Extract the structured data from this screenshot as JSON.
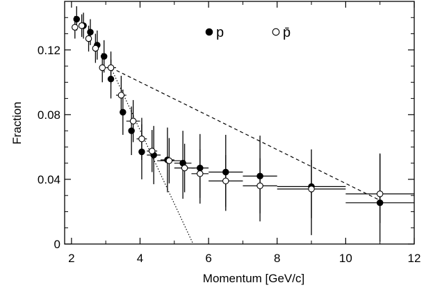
{
  "chart_data": {
    "type": "scatter",
    "xlabel": "Momentum [GeV/c]",
    "ylabel": "Fraction",
    "xlim": [
      1.8,
      12
    ],
    "ylim": [
      0,
      0.15
    ],
    "xticks": [
      "2",
      "4",
      "6",
      "8",
      "10",
      "12"
    ],
    "yticks": [
      "0",
      "0.04",
      "0.08",
      "0.12"
    ],
    "legend": {
      "placement": "top-center",
      "entries": [
        "p",
        "p̄"
      ]
    },
    "series": [
      {
        "name": "p",
        "marker": "filled-circle",
        "points": [
          {
            "x": 2.15,
            "y": 0.139,
            "xerr": 0.0,
            "yerr_lo": 0.007,
            "yerr_hi": 0.008
          },
          {
            "x": 2.35,
            "y": 0.135,
            "xerr": 0.0,
            "yerr_lo": 0.008,
            "yerr_hi": 0.008
          },
          {
            "x": 2.55,
            "y": 0.131,
            "xerr": 0.0,
            "yerr_lo": 0.008,
            "yerr_hi": 0.008
          },
          {
            "x": 2.75,
            "y": 0.123,
            "xerr": 0.0,
            "yerr_lo": 0.009,
            "yerr_hi": 0.009
          },
          {
            "x": 2.95,
            "y": 0.116,
            "xerr": 0.0,
            "yerr_lo": 0.01,
            "yerr_hi": 0.01
          },
          {
            "x": 3.15,
            "y": 0.102,
            "xerr": 0.0,
            "yerr_lo": 0.012,
            "yerr_hi": 0.012
          },
          {
            "x": 3.5,
            "y": 0.0815,
            "xerr": 0.0,
            "yerr_lo": 0.014,
            "yerr_hi": 0.014
          },
          {
            "x": 3.75,
            "y": 0.07,
            "xerr": 0.0,
            "yerr_lo": 0.015,
            "yerr_hi": 0.015
          },
          {
            "x": 4.05,
            "y": 0.057,
            "xerr": 0.0,
            "yerr_lo": 0.017,
            "yerr_hi": 0.017
          },
          {
            "x": 4.4,
            "y": 0.055,
            "xerr": 0.2,
            "yerr_lo": 0.018,
            "yerr_hi": 0.018
          },
          {
            "x": 4.8,
            "y": 0.052,
            "xerr": 0.2,
            "yerr_lo": 0.02,
            "yerr_hi": 0.02
          },
          {
            "x": 5.25,
            "y": 0.05,
            "xerr": 0.25,
            "yerr_lo": 0.022,
            "yerr_hi": 0.02
          },
          {
            "x": 5.75,
            "y": 0.047,
            "xerr": 0.25,
            "yerr_lo": 0.022,
            "yerr_hi": 0.021
          },
          {
            "x": 6.5,
            "y": 0.0445,
            "xerr": 0.5,
            "yerr_lo": 0.024,
            "yerr_hi": 0.023
          },
          {
            "x": 7.5,
            "y": 0.042,
            "xerr": 0.5,
            "yerr_lo": 0.028,
            "yerr_hi": 0.025
          },
          {
            "x": 9.0,
            "y": 0.0355,
            "xerr": 1.0,
            "yerr_lo": 0.03,
            "yerr_hi": 0.023
          },
          {
            "x": 11.0,
            "y": 0.0255,
            "xerr": 1.0,
            "yerr_lo": 0.024,
            "yerr_hi": 0.03
          }
        ]
      },
      {
        "name": "p̄",
        "marker": "open-circle",
        "points": [
          {
            "x": 2.1,
            "y": 0.134,
            "xerr": 0.0,
            "yerr_lo": 0.007,
            "yerr_hi": 0.007
          },
          {
            "x": 2.3,
            "y": 0.135,
            "xerr": 0.0,
            "yerr_lo": 0.007,
            "yerr_hi": 0.007
          },
          {
            "x": 2.5,
            "y": 0.127,
            "xerr": 0.0,
            "yerr_lo": 0.008,
            "yerr_hi": 0.008
          },
          {
            "x": 2.7,
            "y": 0.121,
            "xerr": 0.0,
            "yerr_lo": 0.009,
            "yerr_hi": 0.009
          },
          {
            "x": 2.9,
            "y": 0.109,
            "xerr": 0.0,
            "yerr_lo": 0.009,
            "yerr_hi": 0.009
          },
          {
            "x": 3.15,
            "y": 0.109,
            "xerr": 0.15,
            "yerr_lo": 0.01,
            "yerr_hi": 0.01
          },
          {
            "x": 3.45,
            "y": 0.092,
            "xerr": 0.15,
            "yerr_lo": 0.012,
            "yerr_hi": 0.012
          },
          {
            "x": 3.8,
            "y": 0.076,
            "xerr": 0.2,
            "yerr_lo": 0.013,
            "yerr_hi": 0.013
          },
          {
            "x": 4.05,
            "y": 0.065,
            "xerr": 0.15,
            "yerr_lo": 0.013,
            "yerr_hi": 0.013
          },
          {
            "x": 4.35,
            "y": 0.0575,
            "xerr": 0.15,
            "yerr_lo": 0.013,
            "yerr_hi": 0.013
          },
          {
            "x": 4.85,
            "y": 0.0515,
            "xerr": 0.35,
            "yerr_lo": 0.014,
            "yerr_hi": 0.014
          },
          {
            "x": 5.3,
            "y": 0.047,
            "xerr": 0.3,
            "yerr_lo": 0.015,
            "yerr_hi": 0.015
          },
          {
            "x": 5.75,
            "y": 0.0435,
            "xerr": 0.25,
            "yerr_lo": 0.015,
            "yerr_hi": 0.015
          },
          {
            "x": 6.5,
            "y": 0.039,
            "xerr": 0.5,
            "yerr_lo": 0.016,
            "yerr_hi": 0.016
          },
          {
            "x": 7.5,
            "y": 0.036,
            "xerr": 0.5,
            "yerr_lo": 0.017,
            "yerr_hi": 0.017
          },
          {
            "x": 9.0,
            "y": 0.034,
            "xerr": 1.0,
            "yerr_lo": 0.018,
            "yerr_hi": 0.018
          },
          {
            "x": 11.0,
            "y": 0.031,
            "xerr": 1.0,
            "yerr_lo": 0.018,
            "yerr_hi": 0.025
          }
        ]
      }
    ],
    "reference_lines": [
      {
        "style": "dashed",
        "points": [
          [
            3.15,
            0.109
          ],
          [
            11.0,
            0.027
          ]
        ]
      },
      {
        "style": "dotted",
        "points": [
          [
            3.15,
            0.109
          ],
          [
            5.55,
            0.0
          ]
        ]
      }
    ]
  }
}
